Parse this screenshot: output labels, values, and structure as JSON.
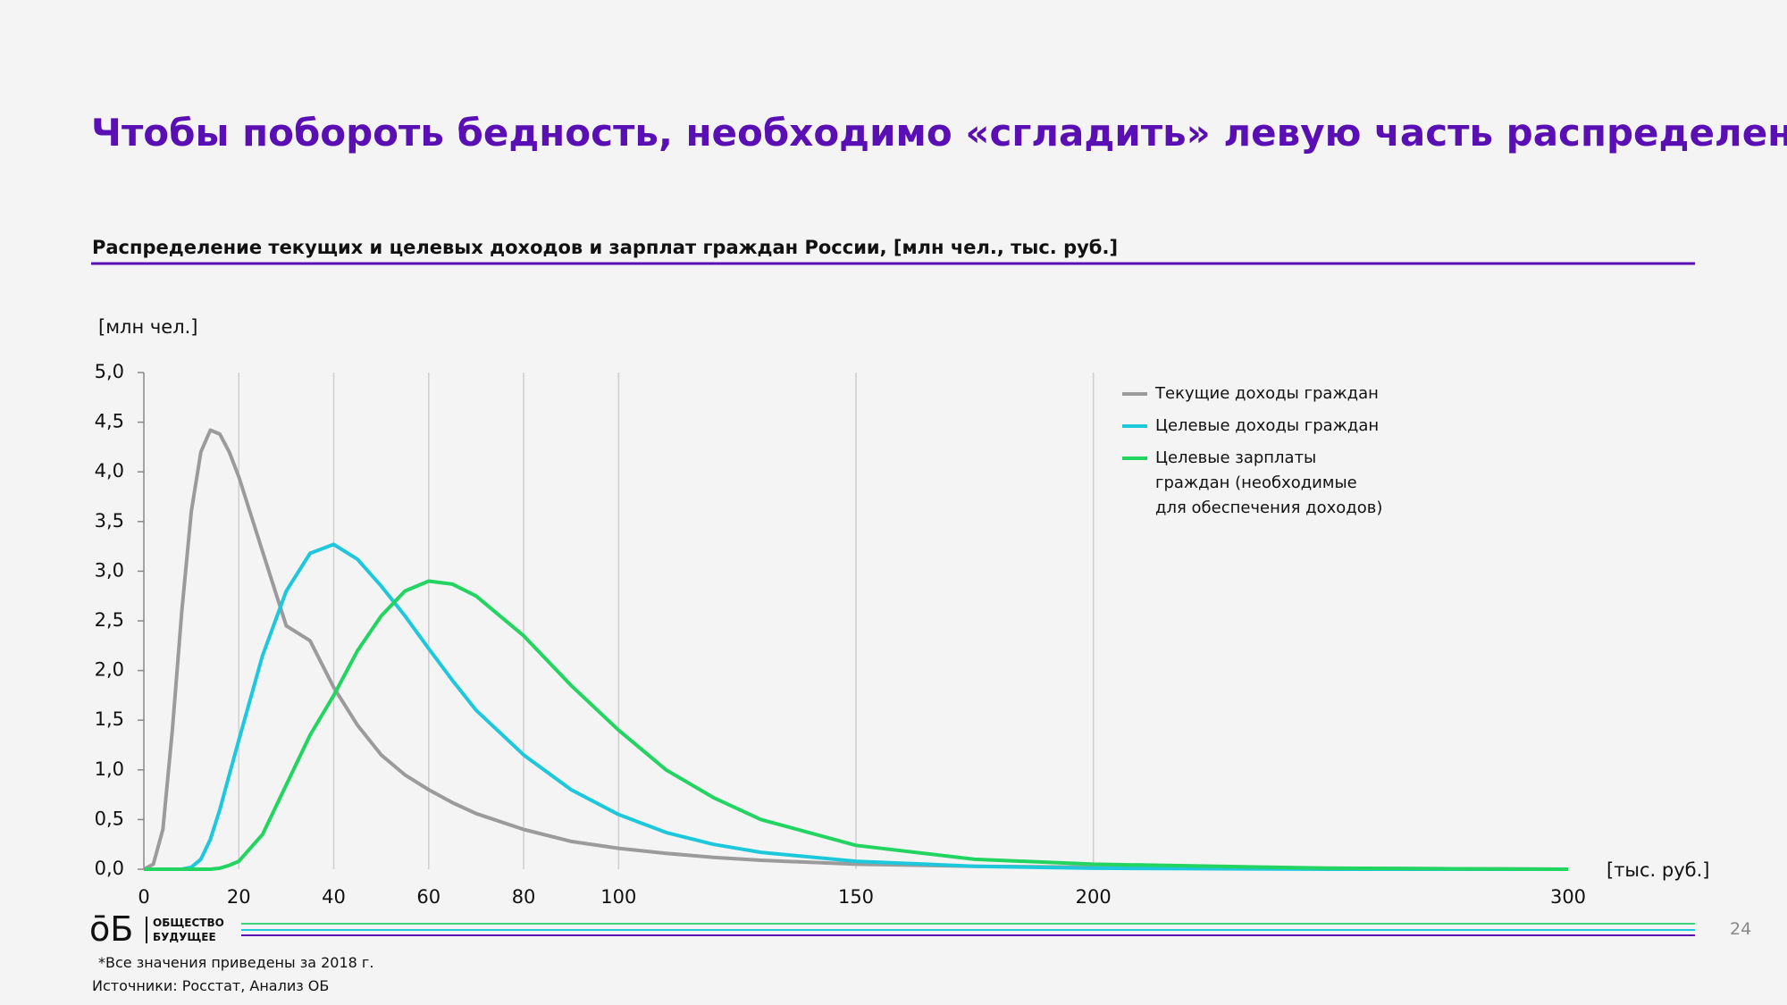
{
  "slide": {
    "title": "Чтобы побороть бедность, необходимо «сгладить» левую часть распределения",
    "logo_mark": "ōБ",
    "logo_line1": "ОБЩЕСТВО",
    "logo_line2": "БУДУЩЕЕ",
    "page_number": "24",
    "footnote": "*Все значения приведены за 2018 г.",
    "sources": "Источники: Росстат, Анализ ОБ"
  },
  "chart_data": {
    "type": "line",
    "subtitle": "Распределение текущих и целевых доходов и зарплат граждан России, [млн чел., тыс. руб.]",
    "y_label": "[млн чел.]",
    "x_label": "[тыс. руб.]",
    "x": [
      0,
      2,
      4,
      6,
      8,
      10,
      12,
      14,
      16,
      18,
      20,
      25,
      30,
      35,
      40,
      45,
      50,
      55,
      60,
      65,
      70,
      80,
      90,
      100,
      110,
      120,
      130,
      150,
      175,
      200,
      250,
      300
    ],
    "series": [
      {
        "name": "Текущие доходы граждан",
        "color": "#9b9b9b",
        "values": [
          0,
          0.05,
          0.4,
          1.4,
          2.6,
          3.6,
          4.2,
          4.42,
          4.38,
          4.2,
          3.95,
          3.2,
          2.45,
          2.3,
          1.83,
          1.45,
          1.15,
          0.95,
          0.8,
          0.67,
          0.56,
          0.4,
          0.28,
          0.21,
          0.16,
          0.12,
          0.09,
          0.05,
          0.03,
          0.02,
          0.01,
          0
        ]
      },
      {
        "name": "Целевые доходы граждан",
        "color": "#1ec8dc",
        "values": [
          0,
          0,
          0,
          0,
          0,
          0.02,
          0.1,
          0.3,
          0.6,
          0.95,
          1.3,
          2.15,
          2.8,
          3.18,
          3.27,
          3.12,
          2.85,
          2.55,
          2.22,
          1.9,
          1.6,
          1.15,
          0.8,
          0.55,
          0.37,
          0.25,
          0.17,
          0.08,
          0.03,
          0.01,
          0,
          0
        ]
      },
      {
        "name": "Целевые зарплаты граждан (необходимые для обеспечения доходов)",
        "color": "#22d460",
        "values": [
          0,
          0,
          0,
          0,
          0,
          0,
          0,
          0,
          0.01,
          0.04,
          0.08,
          0.35,
          0.85,
          1.35,
          1.75,
          2.2,
          2.55,
          2.8,
          2.9,
          2.87,
          2.75,
          2.35,
          1.85,
          1.4,
          1.0,
          0.72,
          0.5,
          0.24,
          0.1,
          0.05,
          0.01,
          0
        ]
      }
    ],
    "xlim": [
      0,
      300
    ],
    "xticks": [
      0,
      20,
      40,
      60,
      80,
      100,
      150,
      200,
      300
    ],
    "ylim": [
      0,
      5
    ],
    "yticks": [
      {
        "value": 0,
        "label": "0,0"
      },
      {
        "value": 0.5,
        "label": "0,5"
      },
      {
        "value": 1,
        "label": "1,0"
      },
      {
        "value": 1.5,
        "label": "1,5"
      },
      {
        "value": 2,
        "label": "2,0"
      },
      {
        "value": 2.5,
        "label": "2,5"
      },
      {
        "value": 3,
        "label": "3,0"
      },
      {
        "value": 3.5,
        "label": "3,5"
      },
      {
        "value": 4,
        "label": "4,0"
      },
      {
        "value": 4.5,
        "label": "4,5"
      },
      {
        "value": 5,
        "label": "5,0"
      }
    ],
    "grid": true
  }
}
